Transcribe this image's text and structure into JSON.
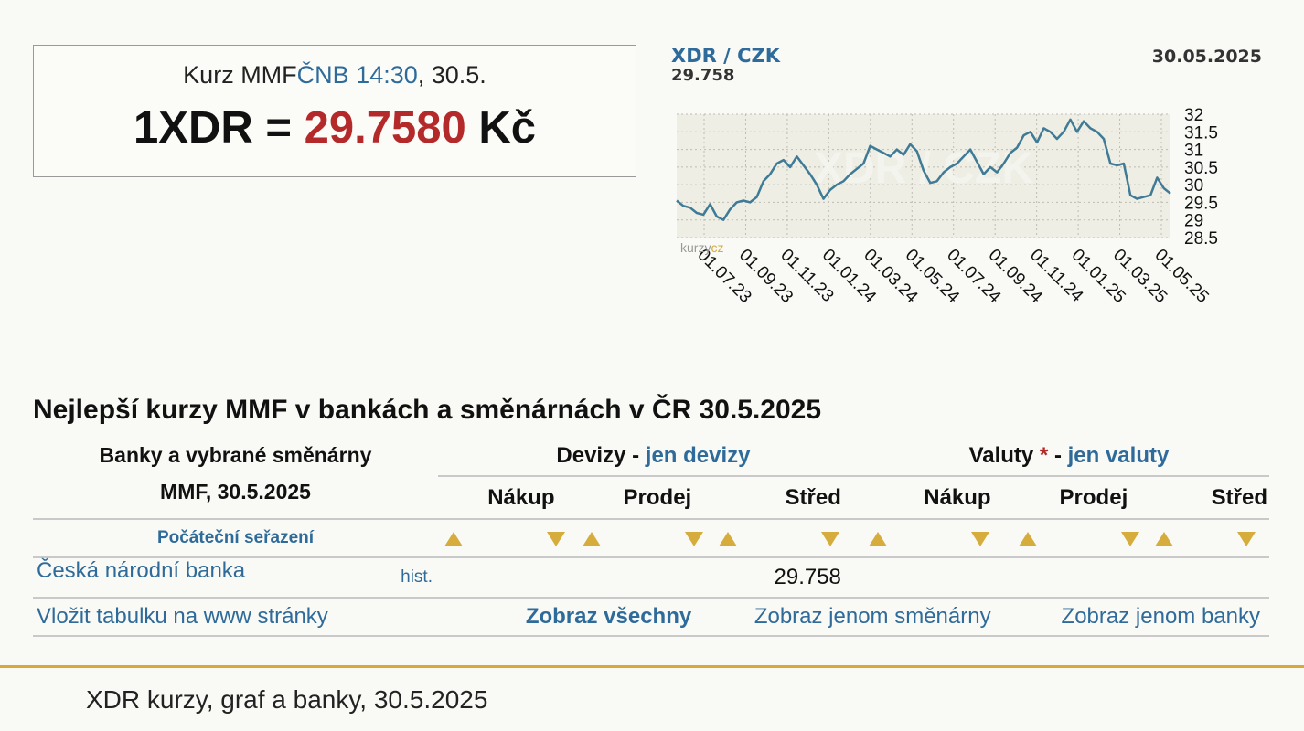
{
  "rate_box": {
    "caption_prefix": "Kurz MMF",
    "caption_source": "ČNB 14:30",
    "caption_date": ", 30.5.",
    "main_left": "1XDR = ",
    "main_value": "29.7580",
    "main_unit": " Kč"
  },
  "chart_data": {
    "type": "line",
    "title": "XDR / CZK",
    "subtitle": "29.758",
    "date": "30.05.2025",
    "watermark": "XDR / CZK",
    "brand": {
      "part1": "kurzy",
      "part2": "cz"
    },
    "ylim": [
      28.5,
      32
    ],
    "yticks": [
      32,
      31.5,
      31,
      30.5,
      30,
      29.5,
      29,
      28.5
    ],
    "xtick_labels": [
      "01.07.23",
      "01.09.23",
      "01.11.23",
      "01.01.24",
      "01.03.24",
      "01.05.24",
      "01.07.24",
      "01.09.24",
      "01.11.24",
      "01.01.25",
      "01.03.25",
      "01.05.25"
    ],
    "series": [
      {
        "color": "#3f7a96",
        "values": [
          29.55,
          29.4,
          29.35,
          29.2,
          29.15,
          29.45,
          29.1,
          29.0,
          29.3,
          29.5,
          29.55,
          29.5,
          29.65,
          30.1,
          30.3,
          30.6,
          30.7,
          30.5,
          30.8,
          30.55,
          30.3,
          30.0,
          29.6,
          29.85,
          30.0,
          30.1,
          30.3,
          30.45,
          30.6,
          31.1,
          31.0,
          30.9,
          30.8,
          31.0,
          30.85,
          31.15,
          30.95,
          30.4,
          30.05,
          30.1,
          30.35,
          30.5,
          30.6,
          30.8,
          31.0,
          30.65,
          30.3,
          30.5,
          30.35,
          30.6,
          30.9,
          31.05,
          31.4,
          31.5,
          31.2,
          31.6,
          31.5,
          31.3,
          31.5,
          31.85,
          31.5,
          31.8,
          31.6,
          31.5,
          31.3,
          30.6,
          30.55,
          30.6,
          29.7,
          29.6,
          29.65,
          29.7,
          30.2,
          29.9,
          29.75
        ]
      }
    ]
  },
  "best_title": "Nejlepší kurzy MMF v bankách a směnárnách v ČR 30.5.2025",
  "table": {
    "left_header_line1": "Banky a vybrané směnárny",
    "left_header_line2": "MMF, 30.5.2025",
    "devizy_label": "Devizy",
    "devizy_sep": " - ",
    "devizy_link": "jen devizy",
    "valuty_label": "Valuty",
    "valuty_star": " *",
    "valuty_sep": " - ",
    "valuty_link": "jen valuty",
    "col_buy": "Nákup",
    "col_sell": "Prodej",
    "col_mid": "Střed",
    "sort_label": "Počáteční seřazení",
    "rows": [
      {
        "bank": "Česká národní banka",
        "hist": "hist.",
        "dev_mid": "29.758"
      }
    ],
    "embed_link": "Vložit tabulku na www stránky",
    "show_all": "Zobraz všechny",
    "show_exchanges": "Zobraz jenom směnárny",
    "show_banks": "Zobraz jenom banky"
  },
  "footer": "XDR kurzy, graf a banky, 30.5.2025"
}
